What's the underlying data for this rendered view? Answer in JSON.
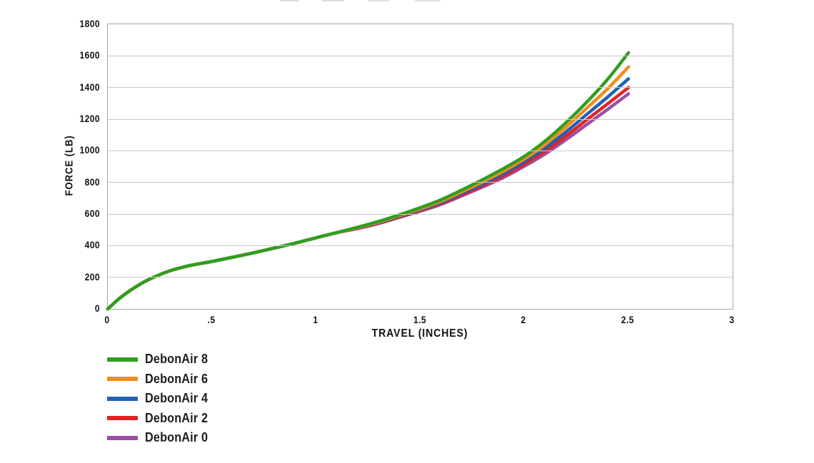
{
  "chart_data": {
    "type": "line",
    "xlabel": "TRAVEL (INCHES)",
    "ylabel": "FORCE (LB)",
    "xlim": [
      0,
      3
    ],
    "ylim": [
      0,
      1800
    ],
    "grid": true,
    "legend_position": "bottom-left",
    "grid_color": "#c9c9c9",
    "border_color": "#a6a6a6",
    "text_color": "#111111",
    "xticks": [
      {
        "v": 0,
        "label": "0"
      },
      {
        "v": 0.5,
        "label": ".5"
      },
      {
        "v": 1,
        "label": "1"
      },
      {
        "v": 1.5,
        "label": "1.5"
      },
      {
        "v": 2,
        "label": "2"
      },
      {
        "v": 2.5,
        "label": "2.5"
      },
      {
        "v": 3,
        "label": "3"
      }
    ],
    "yticks": [
      {
        "v": 0,
        "label": "0"
      },
      {
        "v": 200,
        "label": "200"
      },
      {
        "v": 400,
        "label": "400"
      },
      {
        "v": 600,
        "label": "600"
      },
      {
        "v": 800,
        "label": "800"
      },
      {
        "v": 1000,
        "label": "1000"
      },
      {
        "v": 1200,
        "label": "1200"
      },
      {
        "v": 1400,
        "label": "1400"
      },
      {
        "v": 1600,
        "label": "1600"
      },
      {
        "v": 1800,
        "label": "1800"
      }
    ],
    "x": [
      0,
      0.05,
      0.1,
      0.15,
      0.2,
      0.3,
      0.4,
      0.5,
      0.6,
      0.7,
      0.8,
      0.9,
      1.0,
      1.1,
      1.2,
      1.3,
      1.4,
      1.5,
      1.6,
      1.7,
      1.8,
      1.9,
      2.0,
      2.1,
      2.2,
      2.3,
      2.4,
      2.5
    ],
    "series": [
      {
        "name": "DebonAir 8",
        "color": "#2f9e1f",
        "values": [
          0,
          60,
          110,
          152,
          188,
          242,
          276,
          300,
          327,
          355,
          385,
          416,
          450,
          483,
          517,
          553,
          595,
          640,
          690,
          752,
          818,
          888,
          965,
          1062,
          1178,
          1308,
          1452,
          1620
        ]
      },
      {
        "name": "DebonAir 6",
        "color": "#f28b1f",
        "values": [
          0,
          60,
          110,
          152,
          188,
          242,
          276,
          300,
          327,
          355,
          385,
          416,
          450,
          482,
          514,
          549,
          590,
          633,
          681,
          741,
          804,
          871,
          948,
          1040,
          1150,
          1270,
          1392,
          1530
        ]
      },
      {
        "name": "DebonAir 4",
        "color": "#2062b4",
        "values": [
          0,
          60,
          110,
          152,
          188,
          242,
          276,
          300,
          327,
          355,
          385,
          416,
          450,
          482,
          512,
          546,
          586,
          627,
          673,
          731,
          791,
          856,
          932,
          1018,
          1120,
          1230,
          1340,
          1455
        ]
      },
      {
        "name": "DebonAir 2",
        "color": "#e02425",
        "values": [
          0,
          60,
          110,
          152,
          188,
          242,
          276,
          300,
          327,
          355,
          385,
          416,
          450,
          482,
          510,
          543,
          582,
          622,
          667,
          722,
          780,
          843,
          916,
          998,
          1094,
          1196,
          1297,
          1400
        ]
      },
      {
        "name": "DebonAir 0",
        "color": "#9c4fa4",
        "values": [
          0,
          60,
          110,
          152,
          188,
          242,
          276,
          300,
          327,
          355,
          385,
          416,
          450,
          482,
          508,
          540,
          579,
          618,
          661,
          715,
          771,
          831,
          902,
          980,
          1070,
          1166,
          1262,
          1360
        ]
      }
    ]
  }
}
